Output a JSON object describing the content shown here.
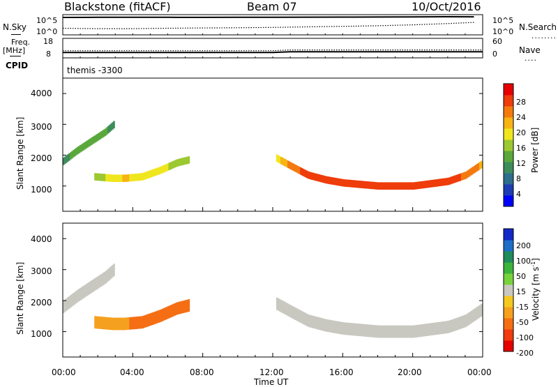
{
  "header": {
    "radar": "Blackstone (fitACF)",
    "beam": "Beam 07",
    "date": "10/Oct/2016"
  },
  "noise_panel": {
    "left_label": "N.Sky",
    "right_label": "N.Search",
    "left_ticks": [
      "10^5",
      "10^0"
    ],
    "right_ticks": [
      "10^5",
      "10^0"
    ]
  },
  "freq_panel": {
    "left_label_1": "Freq.",
    "left_label_2": "[MHz]",
    "right_label": "Nave",
    "left_ticks": [
      "18",
      "8"
    ],
    "right_ticks": [
      "60",
      "0"
    ]
  },
  "cpid_panel": {
    "label": "CPID",
    "text": "themis -3300"
  },
  "x_axis": {
    "ticks": [
      "00:00",
      "04:00",
      "08:00",
      "12:00",
      "16:00",
      "20:00",
      "00:00"
    ],
    "label": "Time UT"
  },
  "power_panel": {
    "ylabel": "Slant Range [km]",
    "yticks": [
      "4000",
      "3000",
      "2000",
      "1000"
    ],
    "colorbar_label": "Power [dB]",
    "colorbar_ticks": [
      "28",
      "24",
      "20",
      "16",
      "12",
      "8",
      "4"
    ],
    "colorbar_colors": [
      "#0000ff",
      "#1e3cb4",
      "#2e6e8c",
      "#3d8c5a",
      "#5aa83c",
      "#9cc832",
      "#f0e61e",
      "#f7b414",
      "#f47a0f",
      "#ee3c0a",
      "#e60000"
    ]
  },
  "velocity_panel": {
    "ylabel": "Slant Range [km]",
    "yticks": [
      "4000",
      "3000",
      "2000",
      "1000"
    ],
    "colorbar_label": "Velocity [m s",
    "colorbar_label_sup": "-1",
    "colorbar_label_end": "]",
    "colorbar_ticks": [
      "200",
      "100",
      "50",
      "15",
      "-15",
      "-50",
      "-100",
      "-200"
    ],
    "colorbar_colors": [
      "#1428c8",
      "#1e6ec8",
      "#1e8c5a",
      "#3cb43c",
      "#78d23c",
      "#c8c8c0",
      "#f5c81e",
      "#f5a01e",
      "#f56e14",
      "#f03c0f",
      "#e60000"
    ]
  },
  "chart_data": [
    {
      "type": "line",
      "title": "N.Sky / N.Search",
      "x": [
        0,
        2,
        4,
        6,
        8,
        10,
        12,
        14,
        16,
        18,
        20,
        22,
        23.5
      ],
      "series": [
        {
          "name": "N.Sky",
          "values": [
            100000,
            110000,
            120000,
            110000,
            105000,
            110000,
            120000,
            125000,
            130000,
            140000,
            150000,
            170000,
            160000
          ]
        },
        {
          "name": "N.Search",
          "values": [
            20,
            15,
            15,
            20,
            25,
            30,
            40,
            60,
            90,
            150,
            300,
            800,
            2000
          ]
        }
      ],
      "xlim": [
        0,
        24
      ],
      "yscale": "log",
      "ylim": [
        1,
        100000
      ]
    },
    {
      "type": "line",
      "title": "Freq. / Nave",
      "x": [
        0,
        6,
        12,
        13,
        18,
        24
      ],
      "series": [
        {
          "name": "Freq. [MHz]",
          "values": [
            10.2,
            10.2,
            10.2,
            10.6,
            10.6,
            10.6
          ]
        },
        {
          "name": "Nave",
          "values": [
            20,
            20,
            20,
            23,
            23,
            23
          ]
        }
      ],
      "xlim": [
        0,
        24
      ]
    },
    {
      "type": "heatmap",
      "title": "Power",
      "xlabel": "Time UT",
      "ylabel": "Slant Range [km]",
      "xlim": [
        0,
        24
      ],
      "ylim": [
        180,
        4500
      ],
      "colorbar": {
        "label": "Power [dB]",
        "range": [
          0,
          30
        ],
        "ticks": [
          4,
          8,
          12,
          16,
          20,
          24,
          28
        ]
      },
      "features": [
        {
          "name": "band_A",
          "x": [
            0.0,
            0.8,
            1.6,
            2.4,
            2.9
          ],
          "range_km": [
            1800,
            2150,
            2450,
            2750,
            3000
          ],
          "power_db": [
            10,
            11,
            12,
            11,
            9
          ]
        },
        {
          "name": "band_B",
          "x": [
            1.8,
            2.8,
            3.5,
            4.5,
            5.5,
            6.5,
            7.2
          ],
          "range_km": [
            1300,
            1250,
            1250,
            1300,
            1500,
            1750,
            1850
          ],
          "power_db": [
            14,
            18,
            20,
            18,
            17,
            16,
            14
          ]
        },
        {
          "name": "band_C",
          "x": [
            12.2,
            13.0,
            14.0,
            15.0,
            16.0,
            18.0,
            20.0,
            22.0,
            23.0,
            23.9
          ],
          "range_km": [
            1900,
            1650,
            1350,
            1200,
            1100,
            1000,
            1000,
            1150,
            1350,
            1700
          ],
          "power_db": [
            18,
            24,
            27,
            28,
            27,
            26,
            26,
            27,
            25,
            22
          ]
        }
      ]
    },
    {
      "type": "heatmap",
      "title": "Velocity",
      "xlabel": "Time UT",
      "ylabel": "Slant Range [km]",
      "xlim": [
        0,
        24
      ],
      "ylim": [
        180,
        4500
      ],
      "colorbar": {
        "label": "Velocity [m s-1]",
        "range": [
          -250,
          250
        ],
        "ticks": [
          200,
          100,
          50,
          15,
          -15,
          -50,
          -100,
          -200
        ]
      },
      "features": [
        {
          "name": "band_A",
          "x": [
            0.0,
            0.8,
            1.6,
            2.4,
            2.9
          ],
          "range_km": [
            1800,
            2150,
            2450,
            2750,
            3000
          ],
          "velocity": [
            0,
            0,
            0,
            0,
            0
          ]
        },
        {
          "name": "band_B",
          "x": [
            1.8,
            2.8,
            3.5,
            4.5,
            5.5,
            6.5,
            7.2
          ],
          "range_km": [
            1300,
            1250,
            1250,
            1300,
            1500,
            1750,
            1850
          ],
          "velocity": [
            -60,
            -60,
            -70,
            -90,
            -100,
            -90,
            -80
          ]
        },
        {
          "name": "band_C",
          "x": [
            12.2,
            13.0,
            14.0,
            15.0,
            16.0,
            18.0,
            20.0,
            22.0,
            23.0,
            23.9
          ],
          "range_km": [
            1900,
            1650,
            1350,
            1200,
            1100,
            1000,
            1000,
            1150,
            1350,
            1700
          ],
          "velocity": [
            0,
            0,
            0,
            0,
            0,
            0,
            0,
            0,
            0,
            0
          ]
        }
      ]
    }
  ]
}
